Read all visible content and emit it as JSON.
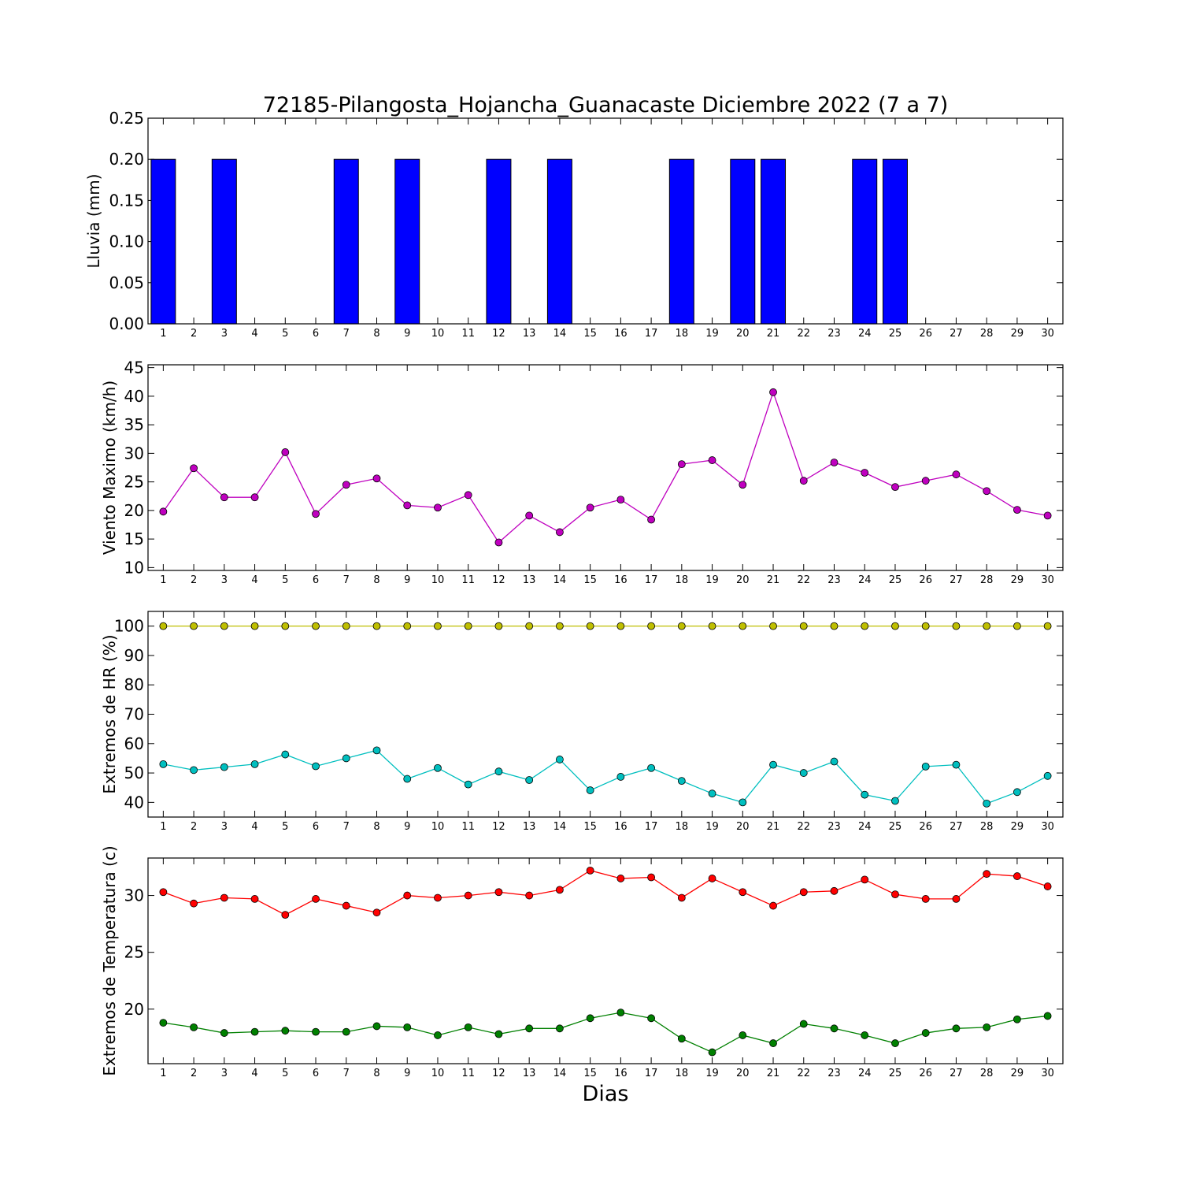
{
  "chart_data": [
    {
      "type": "bar",
      "title": "72185-Pilangosta_Hojancha_Guanacaste Diciembre 2022  (7 a 7)",
      "ylabel": "Lluvia (mm)",
      "xlabel": "",
      "ylim": [
        0,
        0.25
      ],
      "yticks": [
        "0.00",
        "0.05",
        "0.10",
        "0.15",
        "0.20",
        "0.25"
      ],
      "categories": [
        "1",
        "2",
        "3",
        "4",
        "5",
        "6",
        "7",
        "8",
        "9",
        "10",
        "11",
        "12",
        "13",
        "14",
        "15",
        "16",
        "17",
        "18",
        "19",
        "20",
        "21",
        "22",
        "23",
        "24",
        "25",
        "26",
        "27",
        "28",
        "29",
        "30"
      ],
      "series": [
        {
          "values": [
            0.2,
            0,
            0.2,
            0,
            0,
            0,
            0.2,
            0,
            0.2,
            0,
            0,
            0.2,
            0,
            0.2,
            0,
            0,
            0,
            0.2,
            0,
            0.2,
            0.2,
            0,
            0,
            0.2,
            0.2,
            0,
            0,
            0,
            0,
            0
          ],
          "color": "#0000ff"
        }
      ],
      "grid": false
    },
    {
      "type": "line",
      "ylabel": "Viento Maximo (km/h)",
      "xlabel": "",
      "ylim": [
        9.5,
        45.5
      ],
      "yticks": [
        "10",
        "15",
        "20",
        "25",
        "30",
        "35",
        "40",
        "45"
      ],
      "categories": [
        "1",
        "2",
        "3",
        "4",
        "5",
        "6",
        "7",
        "8",
        "9",
        "10",
        "11",
        "12",
        "13",
        "14",
        "15",
        "16",
        "17",
        "18",
        "19",
        "20",
        "21",
        "22",
        "23",
        "24",
        "25",
        "26",
        "27",
        "28",
        "29",
        "30"
      ],
      "series": [
        {
          "values": [
            19.8,
            27.4,
            22.3,
            22.3,
            30.2,
            19.4,
            24.5,
            25.6,
            20.9,
            20.5,
            22.7,
            14.4,
            19.1,
            16.2,
            20.5,
            21.9,
            18.4,
            28.1,
            28.8,
            24.5,
            40.7,
            25.2,
            28.4,
            26.6,
            24.1,
            25.2,
            26.3,
            23.4,
            20.1,
            19.1
          ],
          "color": "#bf00bf"
        }
      ],
      "grid": false
    },
    {
      "type": "line",
      "ylabel": "Extremos de HR (%)",
      "xlabel": "",
      "ylim": [
        35,
        105
      ],
      "yticks": [
        "40",
        "50",
        "60",
        "70",
        "80",
        "90",
        "100"
      ],
      "categories": [
        "1",
        "2",
        "3",
        "4",
        "5",
        "6",
        "7",
        "8",
        "9",
        "10",
        "11",
        "12",
        "13",
        "14",
        "15",
        "16",
        "17",
        "18",
        "19",
        "20",
        "21",
        "22",
        "23",
        "24",
        "25",
        "26",
        "27",
        "28",
        "29",
        "30"
      ],
      "series": [
        {
          "values": [
            100,
            100,
            100,
            100,
            100,
            100,
            100,
            100,
            100,
            100,
            100,
            100,
            100,
            100,
            100,
            100,
            100,
            100,
            100,
            100,
            100,
            100,
            100,
            100,
            100,
            100,
            100,
            100,
            100,
            100
          ],
          "color": "#bfbf00"
        },
        {
          "values": [
            53,
            51,
            52,
            53,
            56.3,
            52.3,
            55,
            57.7,
            48,
            51.7,
            46.1,
            50.5,
            47.6,
            54.6,
            44.1,
            48.7,
            51.7,
            47.3,
            43,
            40,
            52.8,
            50,
            53.9,
            42.6,
            40.5,
            52.2,
            52.8,
            39.6,
            43.5,
            49
          ],
          "color": "#00bfbf"
        }
      ],
      "grid": false
    },
    {
      "type": "line",
      "ylabel": "Extremos de Temperatura (c)",
      "xlabel": "Dias",
      "ylim": [
        15.2,
        33.3
      ],
      "yticks": [
        "20",
        "25",
        "30"
      ],
      "categories": [
        "1",
        "2",
        "3",
        "4",
        "5",
        "6",
        "7",
        "8",
        "9",
        "10",
        "11",
        "12",
        "13",
        "14",
        "15",
        "16",
        "17",
        "18",
        "19",
        "20",
        "21",
        "22",
        "23",
        "24",
        "25",
        "26",
        "27",
        "28",
        "29",
        "30"
      ],
      "series": [
        {
          "values": [
            30.3,
            29.3,
            29.8,
            29.7,
            28.3,
            29.7,
            29.1,
            28.5,
            30,
            29.8,
            30,
            30.3,
            30,
            30.5,
            32.2,
            31.5,
            31.6,
            29.8,
            31.5,
            30.3,
            29.1,
            30.3,
            30.4,
            31.4,
            30.1,
            29.7,
            29.7,
            31.9,
            31.7,
            30.8
          ],
          "color": "#ff0000"
        },
        {
          "values": [
            18.8,
            18.4,
            17.9,
            18,
            18.1,
            18,
            18,
            18.5,
            18.4,
            17.7,
            18.4,
            17.8,
            18.3,
            18.3,
            19.2,
            19.7,
            19.2,
            17.4,
            16.2,
            17.7,
            17,
            18.7,
            18.3,
            17.7,
            17,
            17.9,
            18.3,
            18.4,
            19.1,
            19.4
          ],
          "color": "#008000"
        }
      ],
      "grid": false
    }
  ]
}
